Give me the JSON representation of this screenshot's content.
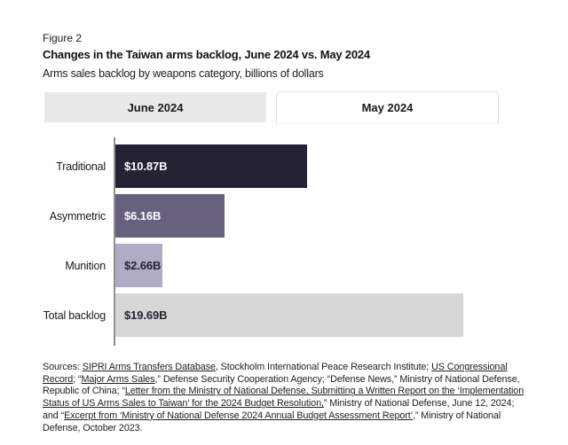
{
  "figure_label": "Figure 2",
  "title": "Changes in the Taiwan arms backlog, June 2024 vs. May 2024",
  "subtitle": "Arms sales backlog by weapons category, billions of dollars",
  "tabs": [
    {
      "label": "June 2024",
      "active": true
    },
    {
      "label": "May 2024",
      "active": false
    }
  ],
  "chart_data": {
    "type": "bar",
    "orientation": "horizontal",
    "title": "Changes in the Taiwan arms backlog, June 2024 vs. May 2024",
    "subtitle": "Arms sales backlog by weapons category, billions of dollars",
    "categories": [
      "Traditional",
      "Asymmetric",
      "Munition",
      "Total backlog"
    ],
    "values": [
      10.87,
      6.16,
      2.66,
      19.69
    ],
    "value_labels": [
      "$10.87B",
      "$6.16B",
      "$2.66B",
      "$19.69B"
    ],
    "bar_colors": [
      "#252233",
      "#67617f",
      "#aeadc4",
      "#d7d7d7"
    ],
    "value_text_colors": [
      "#ffffff",
      "#ffffff",
      "#252233",
      "#252233"
    ],
    "xlabel": "",
    "ylabel": "",
    "xlim": [
      0,
      19.69
    ],
    "unit": "billions of dollars",
    "grid": false,
    "legend": false,
    "axis_line_color": "#8f8f8f"
  },
  "sources": {
    "segments": [
      {
        "t": "Sources: ",
        "u": false
      },
      {
        "t": "SIPRI Arms Transfers Database",
        "u": true
      },
      {
        "t": ", Stockholm International Peace Research Institute; ",
        "u": false
      },
      {
        "t": "US Congressional Record",
        "u": true
      },
      {
        "t": "; “",
        "u": false
      },
      {
        "t": "Major Arms Sales,",
        "u": true
      },
      {
        "t": "” Defense Security Cooperation Agency; “Defense News,” Ministry of National Defense, Republic of China; “",
        "u": false
      },
      {
        "t": "Letter from the Ministry of National Defense, Submitting a Written Report on the ‘Implementation Status of US Arms Sales to Taiwan’ for the 2024 Budget Resolution,",
        "u": true
      },
      {
        "t": "” Ministry of National Defense, June 12, 2024; and “",
        "u": false
      },
      {
        "t": "Excerpt from ‘Ministry of National Defense 2024 Annual Budget Assessment Report’",
        "u": true
      },
      {
        "t": ",” Ministry of National Defense, October 2023.",
        "u": false
      }
    ]
  }
}
